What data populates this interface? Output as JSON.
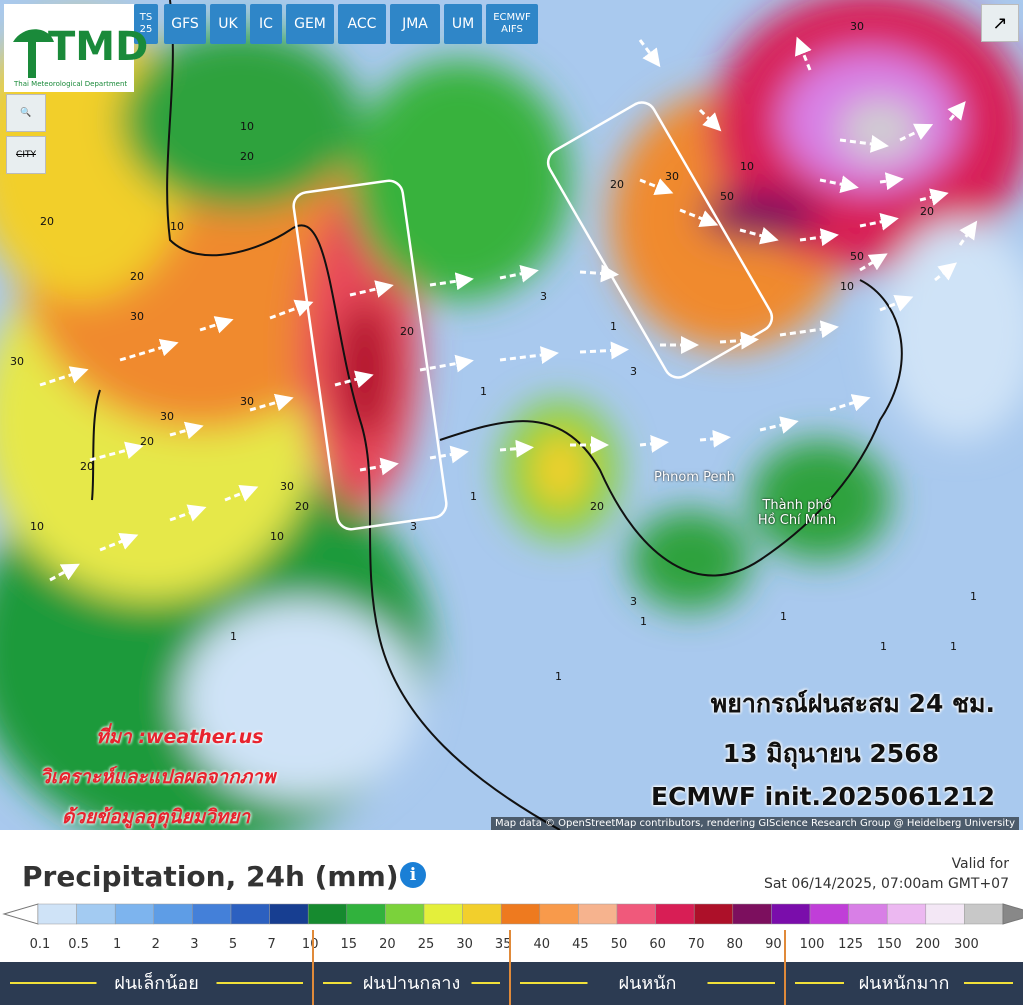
{
  "toolbar": {
    "models": [
      "TS 25",
      "GFS",
      "UK",
      "IC",
      "GEM",
      "ACC",
      "JMA",
      "UM",
      "ECMWF AIFS"
    ],
    "city_button": "CITY"
  },
  "logo": {
    "title": "TMD",
    "subtitle": "Thai Meteorological Department"
  },
  "map": {
    "places": [
      "Phnom Penh",
      "Thành phố Hồ Chí Minh"
    ],
    "contour_labels": [
      "10",
      "20",
      "10",
      "20",
      "30",
      "20",
      "30",
      "30",
      "20",
      "30",
      "20",
      "10",
      "30",
      "20",
      "10",
      "20",
      "3",
      "1",
      "1",
      "3",
      "1",
      "3",
      "1",
      "1",
      "1",
      "1",
      "3",
      "20",
      "30",
      "20",
      "10",
      "50",
      "30",
      "20",
      "10",
      "50",
      "1",
      "1",
      "1"
    ],
    "forecast_title": "พยากรณ์ฝนสะสม 24 ชม.",
    "forecast_date": "13 มิถุนายน 2568",
    "forecast_model": "ECMWF init.2025061212",
    "source_lines": [
      "ที่มา :weather.us",
      "วิเคราะห์และแปลผลจากภาพ",
      "ด้วยข้อมูลอุตุนิยมวิทยา"
    ],
    "attribution": "Map data © OpenStreetMap contributors, rendering GIScience Research Group @ Heidelberg University"
  },
  "legend": {
    "title": "Precipitation, 24h (mm)",
    "valid_label": "Valid for",
    "valid_time": "Sat 06/14/2025, 07:00am GMT+07",
    "levels": [
      "0.1",
      "0.5",
      "1",
      "2",
      "3",
      "5",
      "7",
      "10",
      "15",
      "20",
      "25",
      "30",
      "35",
      "40",
      "45",
      "50",
      "60",
      "70",
      "80",
      "90",
      "100",
      "125",
      "150",
      "200",
      "300"
    ],
    "colors": [
      "#cfe3f7",
      "#a3cbf2",
      "#7db4ee",
      "#5e9de6",
      "#4480d9",
      "#2c60c0",
      "#173e91",
      "#168a2f",
      "#31b23d",
      "#7bd23b",
      "#e4ef3b",
      "#f2cf2c",
      "#ee7a1f",
      "#f89a4b",
      "#f6b38e",
      "#f0597b",
      "#d81e55",
      "#ad1029",
      "#7c0f5e",
      "#7a0dab",
      "#c03ed8",
      "#d87fe6",
      "#ecb8f1",
      "#f3e7f5",
      "#c8c8c8"
    ],
    "categories": [
      "ฝนเล็กน้อย",
      "ฝนปานกลาง",
      "ฝนหนัก",
      "ฝนหนักมาก"
    ]
  }
}
